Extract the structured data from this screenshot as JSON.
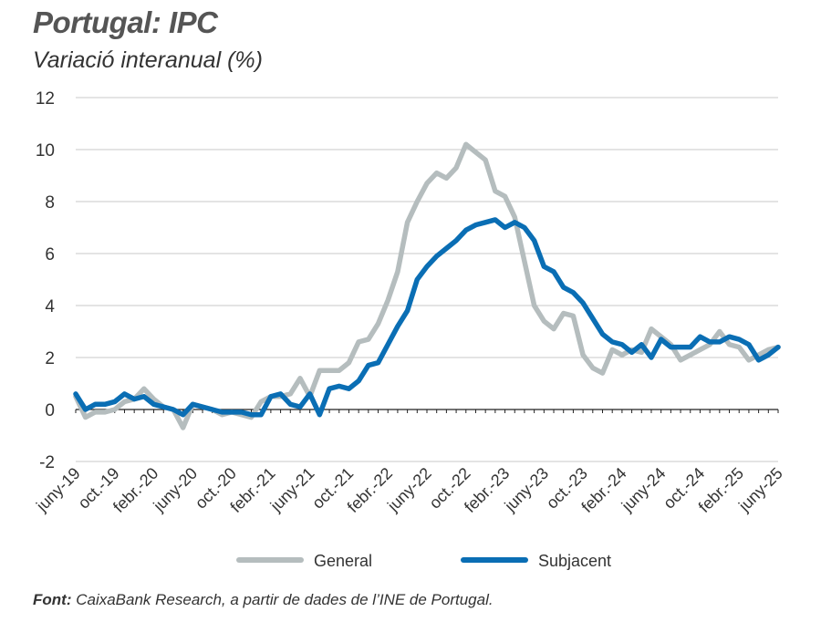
{
  "title": "Portugal: IPC",
  "subtitle": "Variació interanual (%)",
  "source_label": "Font:",
  "source_text": "CaixaBank Research, a partir de dades de l’INE de Portugal.",
  "chart_data": {
    "type": "line",
    "ylim": [
      -2,
      12
    ],
    "yticks": [
      -2,
      0,
      2,
      4,
      6,
      8,
      10,
      12
    ],
    "grid": true,
    "legend_position": "bottom",
    "xtick_labels": [
      "juny-19",
      "oct.-19",
      "febr.-20",
      "juny-20",
      "oct.-20",
      "febr.-21",
      "juny-21",
      "oct.-21",
      "febr.-22",
      "juny-22",
      "oct.-22",
      "febr.-23",
      "juny-23",
      "oct.-23",
      "febr.-24",
      "juny-24",
      "oct.-24",
      "febr.-25",
      "juny-25"
    ],
    "x": [
      "2019-06",
      "2019-07",
      "2019-08",
      "2019-09",
      "2019-10",
      "2019-11",
      "2019-12",
      "2020-01",
      "2020-02",
      "2020-03",
      "2020-04",
      "2020-05",
      "2020-06",
      "2020-07",
      "2020-08",
      "2020-09",
      "2020-10",
      "2020-11",
      "2020-12",
      "2021-01",
      "2021-02",
      "2021-03",
      "2021-04",
      "2021-05",
      "2021-06",
      "2021-07",
      "2021-08",
      "2021-09",
      "2021-10",
      "2021-11",
      "2021-12",
      "2022-01",
      "2022-02",
      "2022-03",
      "2022-04",
      "2022-05",
      "2022-06",
      "2022-07",
      "2022-08",
      "2022-09",
      "2022-10",
      "2022-11",
      "2022-12",
      "2023-01",
      "2023-02",
      "2023-03",
      "2023-04",
      "2023-05",
      "2023-06",
      "2023-07",
      "2023-08",
      "2023-09",
      "2023-10",
      "2023-11",
      "2023-12",
      "2024-01",
      "2024-02",
      "2024-03",
      "2024-04",
      "2024-05",
      "2024-06",
      "2024-07",
      "2024-08",
      "2024-09",
      "2024-10",
      "2024-11",
      "2024-12",
      "2025-01",
      "2025-02",
      "2025-03",
      "2025-04",
      "2025-05",
      "2025-06"
    ],
    "series": [
      {
        "name": "General",
        "color": "#b5bdbe",
        "values": [
          0.5,
          -0.3,
          -0.1,
          -0.1,
          0.0,
          0.3,
          0.4,
          0.8,
          0.4,
          0.1,
          0.0,
          -0.7,
          0.2,
          0.1,
          0.0,
          -0.2,
          -0.1,
          -0.2,
          -0.3,
          0.3,
          0.5,
          0.5,
          0.6,
          1.2,
          0.5,
          1.5,
          1.5,
          1.5,
          1.8,
          2.6,
          2.7,
          3.3,
          4.2,
          5.3,
          7.2,
          8.0,
          8.7,
          9.1,
          8.9,
          9.3,
          10.2,
          9.9,
          9.6,
          8.4,
          8.2,
          7.4,
          5.7,
          4.0,
          3.4,
          3.1,
          3.7,
          3.6,
          2.1,
          1.6,
          1.4,
          2.3,
          2.1,
          2.3,
          2.2,
          3.1,
          2.8,
          2.5,
          1.9,
          2.1,
          2.3,
          2.5,
          3.0,
          2.5,
          2.4,
          1.9,
          2.1,
          2.3,
          2.4
        ]
      },
      {
        "name": "Subjacent",
        "color": "#0a6eb4",
        "values": [
          0.6,
          0.0,
          0.2,
          0.2,
          0.3,
          0.6,
          0.4,
          0.5,
          0.2,
          0.1,
          0.0,
          -0.2,
          0.2,
          0.1,
          0.0,
          -0.1,
          -0.1,
          -0.1,
          -0.2,
          -0.2,
          0.5,
          0.6,
          0.2,
          0.1,
          0.6,
          -0.2,
          0.8,
          0.9,
          0.8,
          1.1,
          1.7,
          1.8,
          2.5,
          3.2,
          3.8,
          5.0,
          5.5,
          5.9,
          6.2,
          6.5,
          6.9,
          7.1,
          7.2,
          7.3,
          7.0,
          7.2,
          7.0,
          6.5,
          5.5,
          5.3,
          4.7,
          4.5,
          4.1,
          3.5,
          2.9,
          2.6,
          2.5,
          2.2,
          2.5,
          2.0,
          2.7,
          2.4,
          2.4,
          2.4,
          2.8,
          2.6,
          2.6,
          2.8,
          2.7,
          2.5,
          1.9,
          2.1,
          2.4
        ]
      }
    ]
  }
}
